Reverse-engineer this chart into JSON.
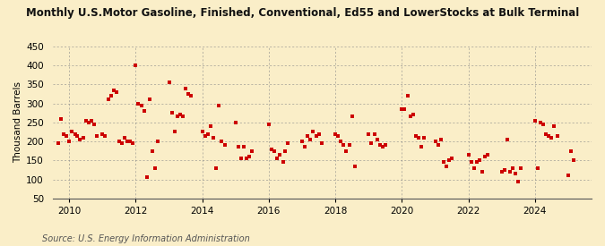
{
  "title": "Monthly U.S.Motor Gasoline, Finished, Conventional, Ed55 and LowerStocks at Bulk Terminal",
  "ylabel": "Thousand Barrels",
  "source": "Source: U.S. Energy Information Administration",
  "background_color": "#faeec8",
  "marker_color": "#cc0000",
  "ylim": [
    50,
    450
  ],
  "yticks": [
    50,
    100,
    150,
    200,
    250,
    300,
    350,
    400,
    450
  ],
  "xlim_start": 2009.5,
  "xlim_end": 2025.7,
  "xticks": [
    2010,
    2012,
    2014,
    2016,
    2018,
    2020,
    2022,
    2024
  ],
  "data": [
    [
      2009.67,
      195
    ],
    [
      2009.75,
      260
    ],
    [
      2009.83,
      220
    ],
    [
      2009.92,
      215
    ],
    [
      2010.0,
      200
    ],
    [
      2010.08,
      225
    ],
    [
      2010.17,
      220
    ],
    [
      2010.25,
      215
    ],
    [
      2010.33,
      205
    ],
    [
      2010.42,
      210
    ],
    [
      2010.5,
      255
    ],
    [
      2010.58,
      250
    ],
    [
      2010.67,
      255
    ],
    [
      2010.75,
      245
    ],
    [
      2010.83,
      215
    ],
    [
      2011.0,
      220
    ],
    [
      2011.08,
      215
    ],
    [
      2011.17,
      310
    ],
    [
      2011.25,
      320
    ],
    [
      2011.33,
      335
    ],
    [
      2011.42,
      330
    ],
    [
      2011.5,
      200
    ],
    [
      2011.58,
      195
    ],
    [
      2011.67,
      210
    ],
    [
      2011.75,
      200
    ],
    [
      2011.83,
      200
    ],
    [
      2011.92,
      195
    ],
    [
      2012.0,
      400
    ],
    [
      2012.08,
      300
    ],
    [
      2012.17,
      295
    ],
    [
      2012.25,
      280
    ],
    [
      2012.33,
      105
    ],
    [
      2012.42,
      310
    ],
    [
      2012.5,
      175
    ],
    [
      2012.58,
      130
    ],
    [
      2012.67,
      200
    ],
    [
      2013.0,
      355
    ],
    [
      2013.08,
      275
    ],
    [
      2013.17,
      225
    ],
    [
      2013.25,
      265
    ],
    [
      2013.33,
      270
    ],
    [
      2013.42,
      265
    ],
    [
      2013.5,
      340
    ],
    [
      2013.58,
      325
    ],
    [
      2013.67,
      320
    ],
    [
      2014.0,
      225
    ],
    [
      2014.08,
      215
    ],
    [
      2014.17,
      220
    ],
    [
      2014.25,
      240
    ],
    [
      2014.33,
      210
    ],
    [
      2014.42,
      130
    ],
    [
      2014.5,
      295
    ],
    [
      2014.58,
      200
    ],
    [
      2014.67,
      190
    ],
    [
      2015.0,
      250
    ],
    [
      2015.08,
      185
    ],
    [
      2015.17,
      155
    ],
    [
      2015.25,
      185
    ],
    [
      2015.33,
      155
    ],
    [
      2015.42,
      160
    ],
    [
      2015.5,
      175
    ],
    [
      2016.0,
      245
    ],
    [
      2016.08,
      180
    ],
    [
      2016.17,
      175
    ],
    [
      2016.25,
      155
    ],
    [
      2016.33,
      165
    ],
    [
      2016.42,
      145
    ],
    [
      2016.5,
      175
    ],
    [
      2016.58,
      195
    ],
    [
      2017.0,
      200
    ],
    [
      2017.08,
      185
    ],
    [
      2017.17,
      215
    ],
    [
      2017.25,
      205
    ],
    [
      2017.33,
      225
    ],
    [
      2017.42,
      215
    ],
    [
      2017.5,
      220
    ],
    [
      2017.58,
      195
    ],
    [
      2018.0,
      220
    ],
    [
      2018.08,
      215
    ],
    [
      2018.17,
      200
    ],
    [
      2018.25,
      190
    ],
    [
      2018.33,
      175
    ],
    [
      2018.42,
      190
    ],
    [
      2018.5,
      265
    ],
    [
      2018.58,
      135
    ],
    [
      2019.0,
      220
    ],
    [
      2019.08,
      195
    ],
    [
      2019.17,
      220
    ],
    [
      2019.25,
      205
    ],
    [
      2019.33,
      190
    ],
    [
      2019.42,
      185
    ],
    [
      2019.5,
      190
    ],
    [
      2020.0,
      285
    ],
    [
      2020.08,
      285
    ],
    [
      2020.17,
      320
    ],
    [
      2020.25,
      265
    ],
    [
      2020.33,
      270
    ],
    [
      2020.42,
      215
    ],
    [
      2020.5,
      210
    ],
    [
      2020.58,
      185
    ],
    [
      2020.67,
      210
    ],
    [
      2021.0,
      200
    ],
    [
      2021.08,
      190
    ],
    [
      2021.17,
      205
    ],
    [
      2021.25,
      145
    ],
    [
      2021.33,
      135
    ],
    [
      2021.42,
      150
    ],
    [
      2021.5,
      155
    ],
    [
      2022.0,
      165
    ],
    [
      2022.08,
      145
    ],
    [
      2022.17,
      130
    ],
    [
      2022.25,
      145
    ],
    [
      2022.33,
      150
    ],
    [
      2022.42,
      120
    ],
    [
      2022.5,
      160
    ],
    [
      2022.58,
      165
    ],
    [
      2023.0,
      120
    ],
    [
      2023.08,
      125
    ],
    [
      2023.17,
      205
    ],
    [
      2023.25,
      120
    ],
    [
      2023.33,
      130
    ],
    [
      2023.42,
      115
    ],
    [
      2023.5,
      95
    ],
    [
      2023.58,
      130
    ],
    [
      2024.0,
      255
    ],
    [
      2024.08,
      130
    ],
    [
      2024.17,
      250
    ],
    [
      2024.25,
      245
    ],
    [
      2024.33,
      220
    ],
    [
      2024.42,
      215
    ],
    [
      2024.5,
      210
    ],
    [
      2024.58,
      240
    ],
    [
      2024.67,
      215
    ],
    [
      2025.0,
      110
    ],
    [
      2025.08,
      175
    ],
    [
      2025.17,
      150
    ]
  ]
}
